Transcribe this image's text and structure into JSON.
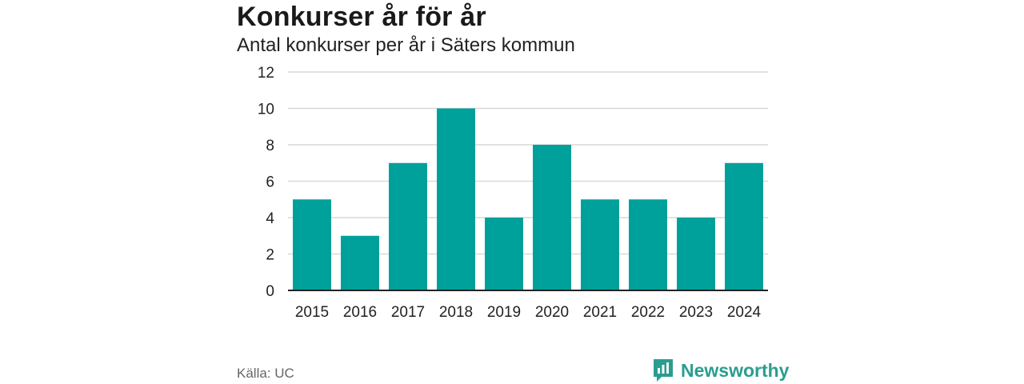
{
  "header": {
    "title": "Konkurser år för år",
    "subtitle": "Antal konkurser per år i Säters kommun"
  },
  "footer": {
    "source": "Källa: UC",
    "brand": "Newsworthy"
  },
  "colors": {
    "bar": "#00a19a",
    "grid": "#d9d9d9",
    "axis": "#222222",
    "brand": "#2a9d8f"
  },
  "chart_data": {
    "type": "bar",
    "title": "Konkurser år för år",
    "subtitle": "Antal konkurser per år i Säters kommun",
    "categories": [
      "2015",
      "2016",
      "2017",
      "2018",
      "2019",
      "2020",
      "2021",
      "2022",
      "2023",
      "2024"
    ],
    "values": [
      5,
      3,
      7,
      10,
      4,
      8,
      5,
      5,
      4,
      7
    ],
    "ylim": [
      0,
      12
    ],
    "yticks": [
      0,
      2,
      4,
      6,
      8,
      10,
      12
    ],
    "grid": true,
    "legend": "none"
  }
}
